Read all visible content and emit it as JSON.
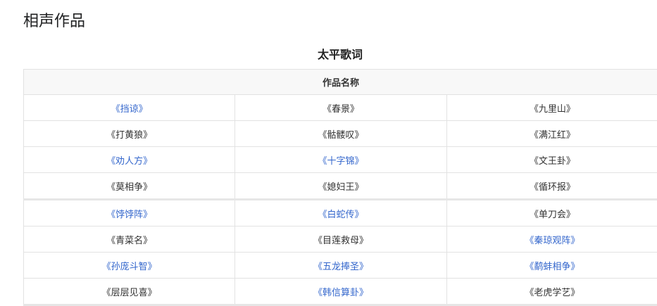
{
  "page_title": "相声作品",
  "table": {
    "caption": "太平歌词",
    "header": "作品名称",
    "link_color": "#3366cc",
    "rows": [
      [
        {
          "t": "《挡谅》",
          "link": true
        },
        {
          "t": "《春景》",
          "link": false
        },
        {
          "t": "《九里山》",
          "link": false
        }
      ],
      [
        {
          "t": "《打黄狼》",
          "link": false
        },
        {
          "t": "《骷髅叹》",
          "link": false
        },
        {
          "t": "《满江红》",
          "link": false
        }
      ],
      [
        {
          "t": "《劝人方》",
          "link": true
        },
        {
          "t": "《十字锦》",
          "link": true
        },
        {
          "t": "《文王卦》",
          "link": false
        }
      ],
      [
        {
          "t": "《莫相争》",
          "link": false
        },
        {
          "t": "《媳妇王》",
          "link": false
        },
        {
          "t": "《循环报》",
          "link": false
        }
      ],
      [
        {
          "t": "《饽饽阵》",
          "link": true
        },
        {
          "t": "《白蛇传》",
          "link": true
        },
        {
          "t": "《单刀会》",
          "link": false
        }
      ],
      [
        {
          "t": "《青菜名》",
          "link": false
        },
        {
          "t": "《目莲救母》",
          "link": false
        },
        {
          "t": "《秦琼观阵》",
          "link": true
        }
      ],
      [
        {
          "t": "《孙庞斗智》",
          "link": true
        },
        {
          "t": "《五龙捧圣》",
          "link": true
        },
        {
          "t": "《鹬蚌相争》",
          "link": true
        }
      ],
      [
        {
          "t": "《层层见喜》",
          "link": false
        },
        {
          "t": "《韩信算卦》",
          "link": true
        },
        {
          "t": "《老虎学艺》",
          "link": false
        }
      ]
    ]
  }
}
